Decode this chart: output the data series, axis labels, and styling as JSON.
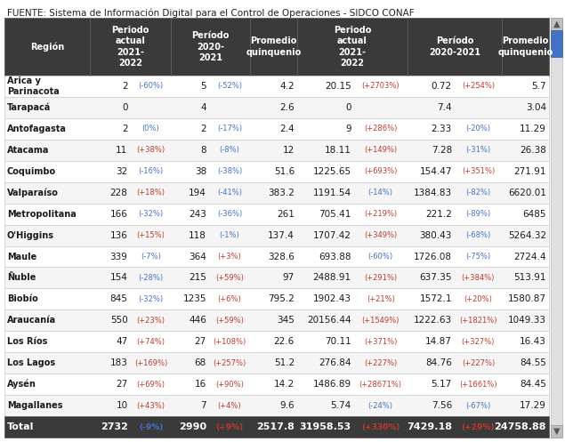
{
  "source_text": "FUENTE: Sistema de Información Digital para el Control de Operaciones - SIDCO CONAF",
  "header_bg": "#3a3a3a",
  "header_fg": "#ffffff",
  "total_bg": "#3a3a3a",
  "total_fg": "#ffffff",
  "row_bg_odd": "#ffffff",
  "row_bg_even": "#f5f5f5",
  "blue_color": "#4472c4",
  "red_color": "#c0392b",
  "border_color": "#cccccc",
  "headers": [
    "Región",
    "Periodo\nactual\n2021-\n2022",
    "Período\n2020-\n2021",
    "Promedio\nquinquenio",
    "Periodo\nactual\n2021-\n2022",
    "Período\n2020-2021",
    "Promedio\nquinquenio"
  ],
  "rows": [
    [
      "Arica y\nParinacota",
      "2",
      "(-60%)",
      "5",
      "(-52%)",
      "4.2",
      "20.15",
      "(+2703%)",
      "0.72",
      "(+254%)",
      "5.7"
    ],
    [
      "Tarapacá",
      "0",
      "",
      "4",
      "",
      "2.6",
      "0",
      "",
      "7.4",
      "",
      "3.04"
    ],
    [
      "Antofagasta",
      "2",
      "(0%)",
      "2",
      "(-17%)",
      "2.4",
      "9",
      "(+286%)",
      "2.33",
      "(-20%)",
      "11.29"
    ],
    [
      "Atacama",
      "11",
      "(+38%)",
      "8",
      "(-8%)",
      "12",
      "18.11",
      "(+149%)",
      "7.28",
      "(-31%)",
      "26.38"
    ],
    [
      "Coquimbo",
      "32",
      "(-16%)",
      "38",
      "(-38%)",
      "51.6",
      "1225.65",
      "(+693%)",
      "154.47",
      "(+351%)",
      "271.91"
    ],
    [
      "Valparaíso",
      "228",
      "(+18%)",
      "194",
      "(-41%)",
      "383.2",
      "1191.54",
      "(-14%)",
      "1384.83",
      "(-82%)",
      "6620.01"
    ],
    [
      "Metropolitana",
      "166",
      "(-32%)",
      "243",
      "(-36%)",
      "261",
      "705.41",
      "(+219%)",
      "221.2",
      "(-89%)",
      "6485"
    ],
    [
      "O'Higgins",
      "136",
      "(+15%)",
      "118",
      "(-1%)",
      "137.4",
      "1707.42",
      "(+349%)",
      "380.43",
      "(-68%)",
      "5264.32"
    ],
    [
      "Maule",
      "339",
      "(-7%)",
      "364",
      "(+3%)",
      "328.6",
      "693.88",
      "(-60%)",
      "1726.08",
      "(-75%)",
      "2724.4"
    ],
    [
      "Ñuble",
      "154",
      "(-28%)",
      "215",
      "(+59%)",
      "97",
      "2488.91",
      "(+291%)",
      "637.35",
      "(+384%)",
      "513.91"
    ],
    [
      "Biobío",
      "845",
      "(-32%)",
      "1235",
      "(+6%)",
      "795.2",
      "1902.43",
      "(+21%)",
      "1572.1",
      "(+20%)",
      "1580.87"
    ],
    [
      "Araucanía",
      "550",
      "(+23%)",
      "446",
      "(+59%)",
      "345",
      "20156.44",
      "(+1549%)",
      "1222.63",
      "(+1821%)",
      "1049.33"
    ],
    [
      "Los Ríos",
      "47",
      "(+74%)",
      "27",
      "(+108%)",
      "22.6",
      "70.11",
      "(+371%)",
      "14.87",
      "(+327%)",
      "16.43"
    ],
    [
      "Los Lagos",
      "183",
      "(+169%)",
      "68",
      "(+257%)",
      "51.2",
      "276.84",
      "(+227%)",
      "84.76",
      "(+227%)",
      "84.55"
    ],
    [
      "Aysén",
      "27",
      "(+69%)",
      "16",
      "(+90%)",
      "14.2",
      "1486.89",
      "(+28671%)",
      "5.17",
      "(+1661%)",
      "84.45"
    ],
    [
      "Magallanes",
      "10",
      "(+43%)",
      "7",
      "(+4%)",
      "9.6",
      "5.74",
      "(-24%)",
      "7.56",
      "(-67%)",
      "17.29"
    ]
  ],
  "total_row": [
    "Total",
    "2732",
    "(-9%)",
    "2990",
    "(+9%)",
    "2517.8",
    "31958.53",
    "(+330%)",
    "7429.18",
    "(+29%)",
    "24758.88"
  ],
  "scrollbar_color": "#4472c4"
}
